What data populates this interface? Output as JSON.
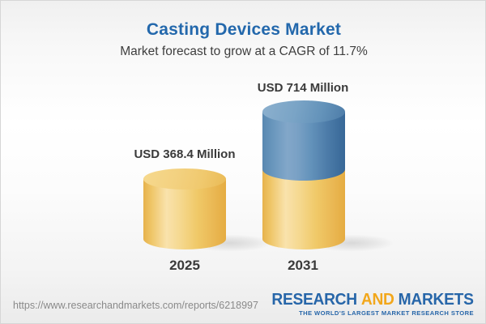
{
  "header": {
    "title": "Casting Devices Market",
    "subtitle": "Market forecast to grow at a CAGR of 11.7%"
  },
  "chart_data": {
    "type": "bar",
    "variant": "3d-cylinder",
    "title": "Casting Devices Market",
    "subtitle": "Market forecast to grow at a CAGR of 11.7%",
    "unit": "USD Million",
    "cagr_percent": 11.7,
    "categories": [
      "2025",
      "2031"
    ],
    "values": [
      368.4,
      714
    ],
    "bars": [
      {
        "year": "2025",
        "value": 368.4,
        "value_label": "USD 368.4 Million",
        "segments": [
          {
            "name": "base",
            "color": "#f0c968"
          }
        ]
      },
      {
        "year": "2031",
        "value": 714,
        "value_label": "USD 714 Million",
        "segments": [
          {
            "name": "base",
            "color": "#f0c968"
          },
          {
            "name": "growth",
            "color": "#6493bb"
          }
        ]
      }
    ],
    "legend": null,
    "grid": false,
    "xlabel": "",
    "ylabel": ""
  },
  "colors": {
    "title_blue": "#2368ac",
    "text_dark": "#3a3a3a",
    "bar_yellow": "#f0c968",
    "bar_blue": "#6493bb",
    "url_gray": "#8a8a8a",
    "logo_blue": "#2766a9",
    "logo_orange": "#f2a71b",
    "background_top": "#f0f0f0",
    "background_bottom": "#ebebeb"
  },
  "footer": {
    "url": "https://www.researchandmarkets.com/reports/6218997",
    "logo": {
      "part1": "RESEARCH",
      "part2": "AND",
      "part3": "MARKETS",
      "tagline": "THE WORLD'S LARGEST MARKET RESEARCH STORE"
    }
  }
}
